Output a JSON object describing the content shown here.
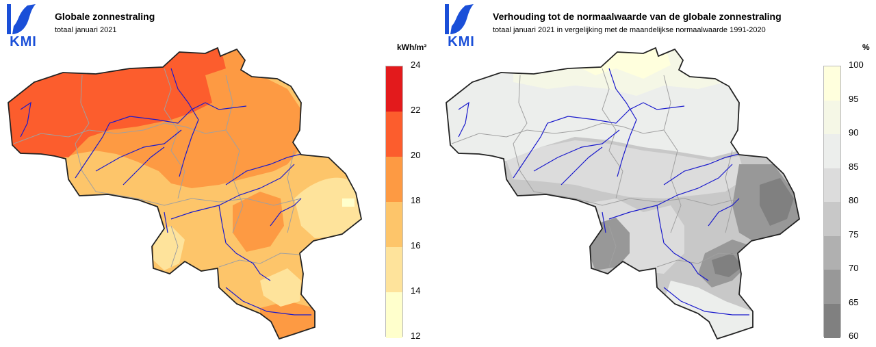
{
  "left": {
    "logo_text": "KMI",
    "title": "Globale zonnestraling",
    "subtitle": "totaal januari 2021",
    "unit": "kWh/m²",
    "legend_ticks": [
      "24",
      "22",
      "20",
      "18",
      "16",
      "14",
      "12"
    ],
    "legend_colors": [
      "#e31a1c",
      "#fc5d2d",
      "#fd9a43",
      "#fdc56a",
      "#fee39b",
      "#ffffcc"
    ]
  },
  "right": {
    "logo_text": "KMI",
    "title": "Verhouding tot de normaalwaarde van de globale zonnestraling",
    "subtitle": "totaal januari 2021 in vergelijking met de maandelijkse normaalwaarde 1991-2020",
    "unit": "%",
    "legend_ticks": [
      "100",
      "95",
      "90",
      "85",
      "80",
      "75",
      "70",
      "65",
      "60"
    ],
    "legend_colors": [
      "#ffffdd",
      "#f5f7e6",
      "#eceeec",
      "#dcdcdc",
      "#c8c8c8",
      "#b0b0b0",
      "#989898",
      "#808080"
    ]
  },
  "colors": {
    "logo_blue": "#1a4fd8",
    "border": "#222222",
    "rivers": "#1a1acc",
    "provinces": "#a0a0a0"
  }
}
